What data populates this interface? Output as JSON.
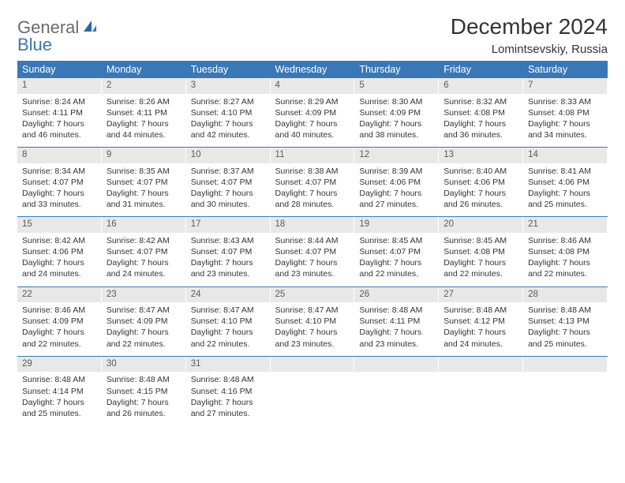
{
  "brand": {
    "word1": "General",
    "word2": "Blue"
  },
  "title": "December 2024",
  "location": "Lomintsevskiy, Russia",
  "colors": {
    "header_bg": "#3a77b7",
    "header_text": "#ffffff",
    "daynum_bg": "#e8e8e8",
    "rule": "#3a77b7",
    "body_text": "#333333",
    "logo_gray": "#6b6b6b",
    "logo_blue": "#3a77b7"
  },
  "dow": [
    "Sunday",
    "Monday",
    "Tuesday",
    "Wednesday",
    "Thursday",
    "Friday",
    "Saturday"
  ],
  "weeks": [
    [
      {
        "n": "1",
        "sr": "8:24 AM",
        "ss": "4:11 PM",
        "dl": "7 hours and 46 minutes."
      },
      {
        "n": "2",
        "sr": "8:26 AM",
        "ss": "4:11 PM",
        "dl": "7 hours and 44 minutes."
      },
      {
        "n": "3",
        "sr": "8:27 AM",
        "ss": "4:10 PM",
        "dl": "7 hours and 42 minutes."
      },
      {
        "n": "4",
        "sr": "8:29 AM",
        "ss": "4:09 PM",
        "dl": "7 hours and 40 minutes."
      },
      {
        "n": "5",
        "sr": "8:30 AM",
        "ss": "4:09 PM",
        "dl": "7 hours and 38 minutes."
      },
      {
        "n": "6",
        "sr": "8:32 AM",
        "ss": "4:08 PM",
        "dl": "7 hours and 36 minutes."
      },
      {
        "n": "7",
        "sr": "8:33 AM",
        "ss": "4:08 PM",
        "dl": "7 hours and 34 minutes."
      }
    ],
    [
      {
        "n": "8",
        "sr": "8:34 AM",
        "ss": "4:07 PM",
        "dl": "7 hours and 33 minutes."
      },
      {
        "n": "9",
        "sr": "8:35 AM",
        "ss": "4:07 PM",
        "dl": "7 hours and 31 minutes."
      },
      {
        "n": "10",
        "sr": "8:37 AM",
        "ss": "4:07 PM",
        "dl": "7 hours and 30 minutes."
      },
      {
        "n": "11",
        "sr": "8:38 AM",
        "ss": "4:07 PM",
        "dl": "7 hours and 28 minutes."
      },
      {
        "n": "12",
        "sr": "8:39 AM",
        "ss": "4:06 PM",
        "dl": "7 hours and 27 minutes."
      },
      {
        "n": "13",
        "sr": "8:40 AM",
        "ss": "4:06 PM",
        "dl": "7 hours and 26 minutes."
      },
      {
        "n": "14",
        "sr": "8:41 AM",
        "ss": "4:06 PM",
        "dl": "7 hours and 25 minutes."
      }
    ],
    [
      {
        "n": "15",
        "sr": "8:42 AM",
        "ss": "4:06 PM",
        "dl": "7 hours and 24 minutes."
      },
      {
        "n": "16",
        "sr": "8:42 AM",
        "ss": "4:07 PM",
        "dl": "7 hours and 24 minutes."
      },
      {
        "n": "17",
        "sr": "8:43 AM",
        "ss": "4:07 PM",
        "dl": "7 hours and 23 minutes."
      },
      {
        "n": "18",
        "sr": "8:44 AM",
        "ss": "4:07 PM",
        "dl": "7 hours and 23 minutes."
      },
      {
        "n": "19",
        "sr": "8:45 AM",
        "ss": "4:07 PM",
        "dl": "7 hours and 22 minutes."
      },
      {
        "n": "20",
        "sr": "8:45 AM",
        "ss": "4:08 PM",
        "dl": "7 hours and 22 minutes."
      },
      {
        "n": "21",
        "sr": "8:46 AM",
        "ss": "4:08 PM",
        "dl": "7 hours and 22 minutes."
      }
    ],
    [
      {
        "n": "22",
        "sr": "8:46 AM",
        "ss": "4:09 PM",
        "dl": "7 hours and 22 minutes."
      },
      {
        "n": "23",
        "sr": "8:47 AM",
        "ss": "4:09 PM",
        "dl": "7 hours and 22 minutes."
      },
      {
        "n": "24",
        "sr": "8:47 AM",
        "ss": "4:10 PM",
        "dl": "7 hours and 22 minutes."
      },
      {
        "n": "25",
        "sr": "8:47 AM",
        "ss": "4:10 PM",
        "dl": "7 hours and 23 minutes."
      },
      {
        "n": "26",
        "sr": "8:48 AM",
        "ss": "4:11 PM",
        "dl": "7 hours and 23 minutes."
      },
      {
        "n": "27",
        "sr": "8:48 AM",
        "ss": "4:12 PM",
        "dl": "7 hours and 24 minutes."
      },
      {
        "n": "28",
        "sr": "8:48 AM",
        "ss": "4:13 PM",
        "dl": "7 hours and 25 minutes."
      }
    ],
    [
      {
        "n": "29",
        "sr": "8:48 AM",
        "ss": "4:14 PM",
        "dl": "7 hours and 25 minutes."
      },
      {
        "n": "30",
        "sr": "8:48 AM",
        "ss": "4:15 PM",
        "dl": "7 hours and 26 minutes."
      },
      {
        "n": "31",
        "sr": "8:48 AM",
        "ss": "4:16 PM",
        "dl": "7 hours and 27 minutes."
      },
      null,
      null,
      null,
      null
    ]
  ],
  "labels": {
    "sunrise": "Sunrise:",
    "sunset": "Sunset:",
    "daylight": "Daylight:"
  }
}
